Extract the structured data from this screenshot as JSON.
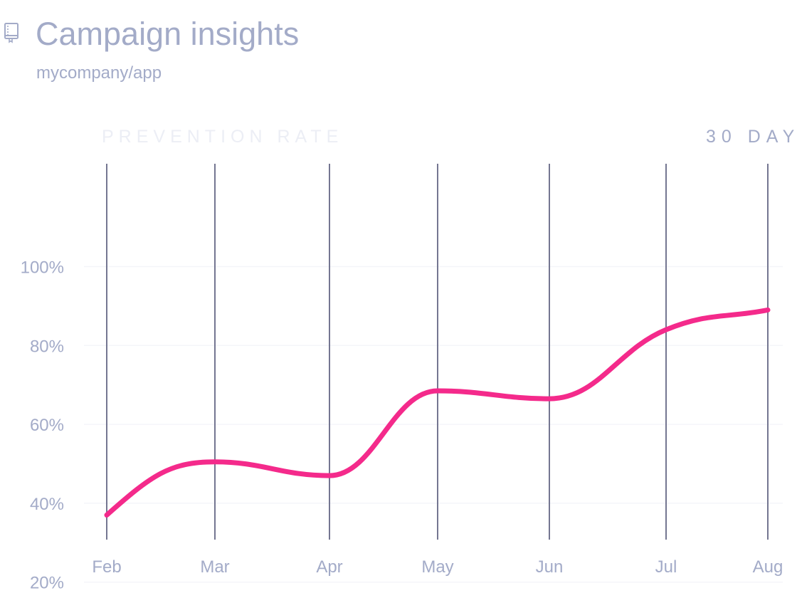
{
  "header": {
    "title": "Campaign insights",
    "subtitle": "mycompany/app",
    "icon": "repo-icon"
  },
  "colors": {
    "line": "#f42a8b",
    "grid_vertical": "#747691",
    "grid_horizontal": "#f4f5f9",
    "muted_text": "#a3abc8",
    "faint_text": "#eceef5"
  },
  "chart_data": {
    "type": "line",
    "title": "PREVENTION RATE",
    "range_label": "30 DAY",
    "xlabel": "",
    "ylabel": "",
    "categories": [
      "Feb",
      "Mar",
      "Apr",
      "May",
      "Jun",
      "Jul",
      "Aug"
    ],
    "series": [
      {
        "name": "Prevention rate",
        "values": [
          37,
          50.5,
          47,
          68.5,
          66.5,
          84,
          89
        ]
      }
    ],
    "y_ticks": [
      20,
      40,
      60,
      80,
      100
    ],
    "y_tick_labels": [
      "20%",
      "40%",
      "60%",
      "80%",
      "100%"
    ],
    "ylim": [
      10,
      100
    ],
    "grid": true,
    "legend": "none"
  }
}
